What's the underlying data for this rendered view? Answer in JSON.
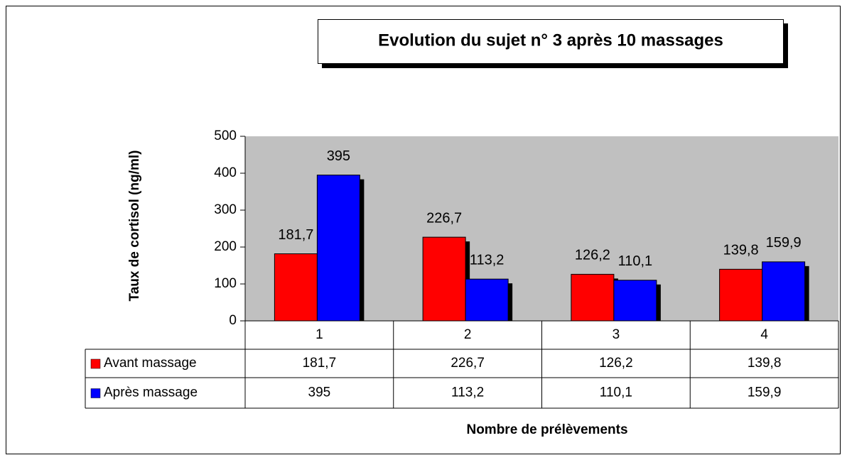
{
  "chart_data": {
    "type": "bar",
    "title": "Evolution du sujet n° 3 après 10 massages",
    "y_label": "Taux de cortisol (ng/ml)",
    "x_label": "Nombre de prélèvements",
    "categories": [
      "1",
      "2",
      "3",
      "4"
    ],
    "series": [
      {
        "name": "Avant massage",
        "color": "#ff0000",
        "values": [
          181.7,
          226.7,
          126.2,
          139.8
        ],
        "value_labels": [
          "181,7",
          "226,7",
          "126,2",
          "139,8"
        ]
      },
      {
        "name": "Après massage",
        "color": "#0000ff",
        "values": [
          395,
          113.2,
          110.1,
          159.9
        ],
        "value_labels": [
          "395",
          "113,2",
          "110,1",
          "159,9"
        ]
      }
    ],
    "ylim": [
      0,
      500
    ],
    "yticks": [
      0,
      100,
      200,
      300,
      400,
      500
    ],
    "grid": false
  }
}
